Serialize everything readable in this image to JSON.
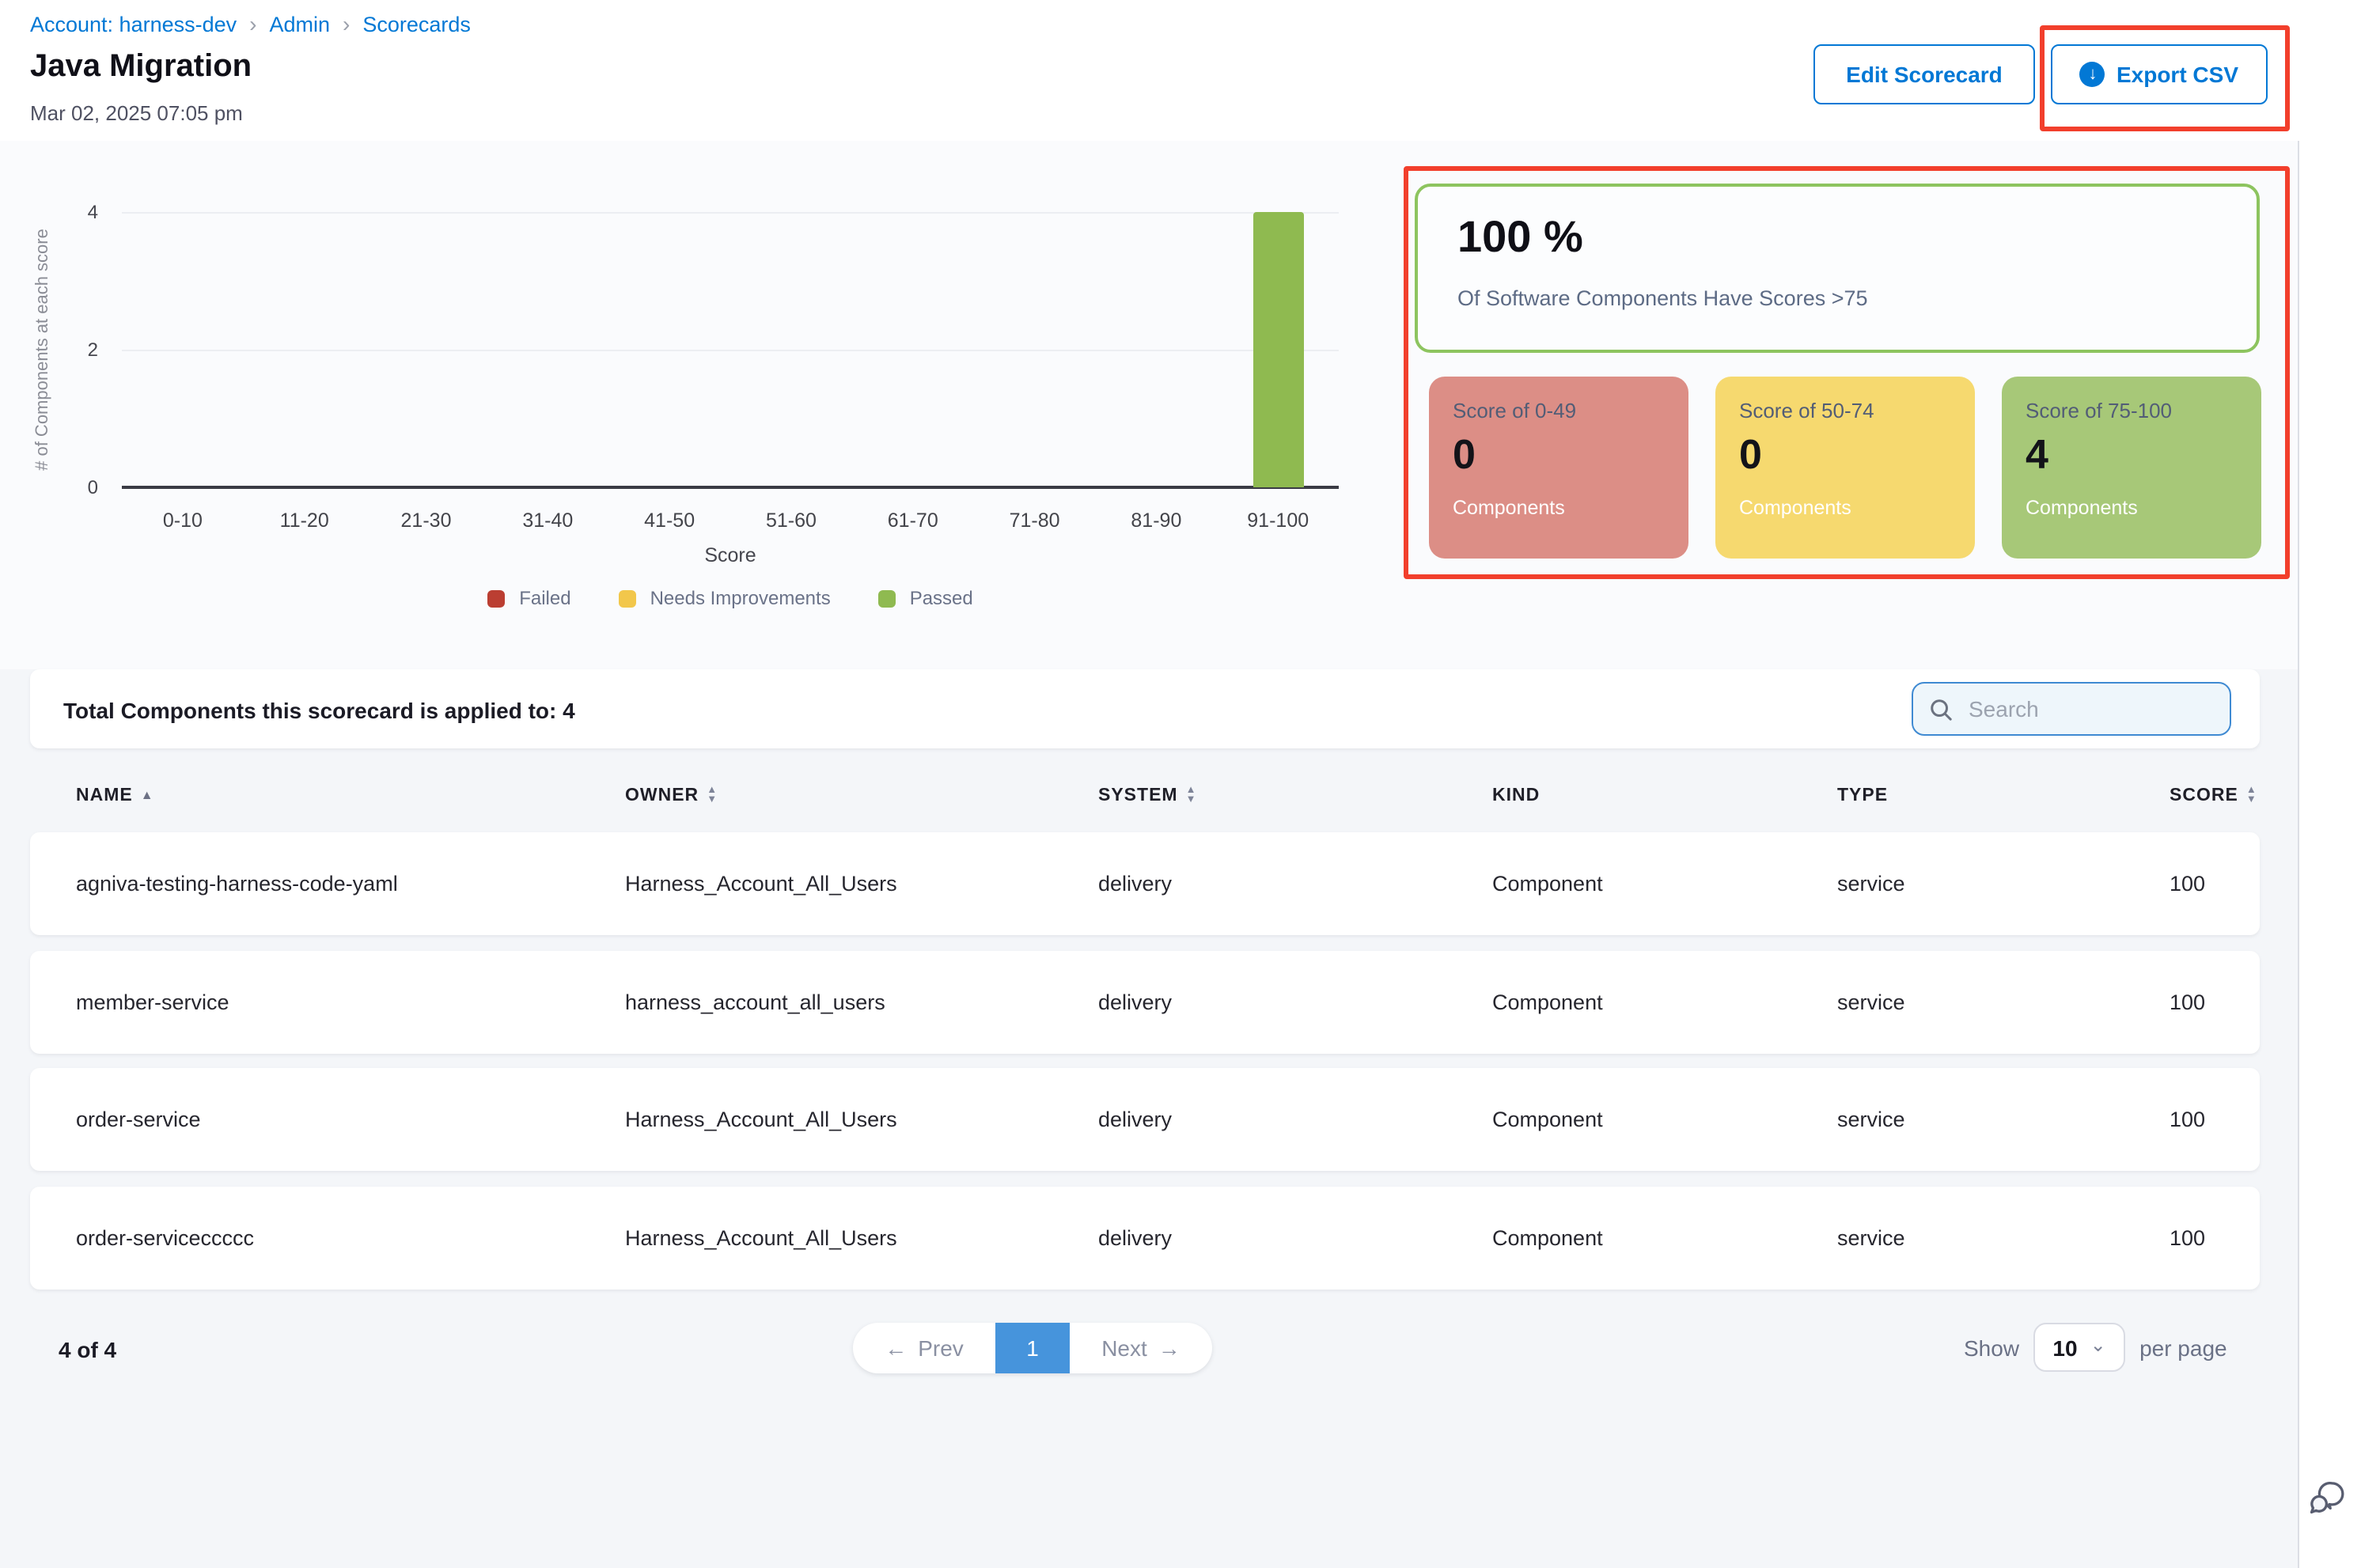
{
  "breadcrumb": {
    "items": [
      {
        "label": "Account: harness-dev"
      },
      {
        "label": "Admin"
      },
      {
        "label": "Scorecards"
      }
    ]
  },
  "header": {
    "title": "Java Migration",
    "timestamp": "Mar 02, 2025 07:05 pm",
    "edit_button": "Edit Scorecard",
    "export_button": "Export CSV"
  },
  "annotation_color": "#F23F2C",
  "chart_data": {
    "type": "bar",
    "title": "",
    "categories": [
      "0-10",
      "11-20",
      "21-30",
      "31-40",
      "41-50",
      "51-60",
      "61-70",
      "71-80",
      "81-90",
      "91-100"
    ],
    "series": [
      {
        "name": "Failed",
        "color": "#BB3E32",
        "values": [
          0,
          0,
          0,
          0,
          0,
          0,
          0,
          0,
          0,
          0
        ]
      },
      {
        "name": "Needs Improvements",
        "color": "#F2C74B",
        "values": [
          0,
          0,
          0,
          0,
          0,
          0,
          0,
          0,
          0,
          0
        ]
      },
      {
        "name": "Passed",
        "color": "#8FBA50",
        "values": [
          0,
          0,
          0,
          0,
          0,
          0,
          0,
          0,
          0,
          4
        ]
      }
    ],
    "xlabel": "Score",
    "ylabel": "# of Components at each score",
    "yticks": [
      "4",
      "2",
      "0"
    ],
    "ylim": [
      0,
      4
    ],
    "grid": "horizontal",
    "legend_position": "bottom"
  },
  "summary": {
    "headline_value": "100 %",
    "headline_caption": "Of Software Components Have Scores >75",
    "border_color": "#8DC45F",
    "cards": [
      {
        "title": "Score of 0-49",
        "count": "0",
        "label": "Components",
        "color": "#DC8E86"
      },
      {
        "title": "Score of 50-74",
        "count": "0",
        "label": "Components",
        "color": "#F6D96F"
      },
      {
        "title": "Score of 75-100",
        "count": "4",
        "label": "Components",
        "color": "#A7C878"
      }
    ]
  },
  "table": {
    "total_label": "Total Components this scorecard is applied to: 4",
    "search_placeholder": "Search",
    "columns": [
      {
        "label": "NAME"
      },
      {
        "label": "OWNER"
      },
      {
        "label": "SYSTEM"
      },
      {
        "label": "KIND"
      },
      {
        "label": "TYPE"
      },
      {
        "label": "SCORE"
      }
    ],
    "rows": [
      {
        "name": "agniva-testing-harness-code-yaml",
        "owner": "Harness_Account_All_Users",
        "system": "delivery",
        "kind": "Component",
        "type": "service",
        "score": "100"
      },
      {
        "name": "member-service",
        "owner": "harness_account_all_users",
        "system": "delivery",
        "kind": "Component",
        "type": "service",
        "score": "100"
      },
      {
        "name": "order-service",
        "owner": "Harness_Account_All_Users",
        "system": "delivery",
        "kind": "Component",
        "type": "service",
        "score": "100"
      },
      {
        "name": "order-serviceccccc",
        "owner": "Harness_Account_All_Users",
        "system": "delivery",
        "kind": "Component",
        "type": "service",
        "score": "100"
      }
    ]
  },
  "pagination": {
    "range": "4 of 4",
    "prev": "Prev",
    "page": "1",
    "next": "Next",
    "show": "Show",
    "page_size": "10",
    "per_page": "per page"
  },
  "icons": {
    "breadcrumb_separator": "›",
    "sort_asc": "▲",
    "sort_desc": "▼",
    "prev_arrow": "←",
    "next_arrow": "→",
    "chevron_down": "⌄",
    "download_arrow": "↓"
  }
}
